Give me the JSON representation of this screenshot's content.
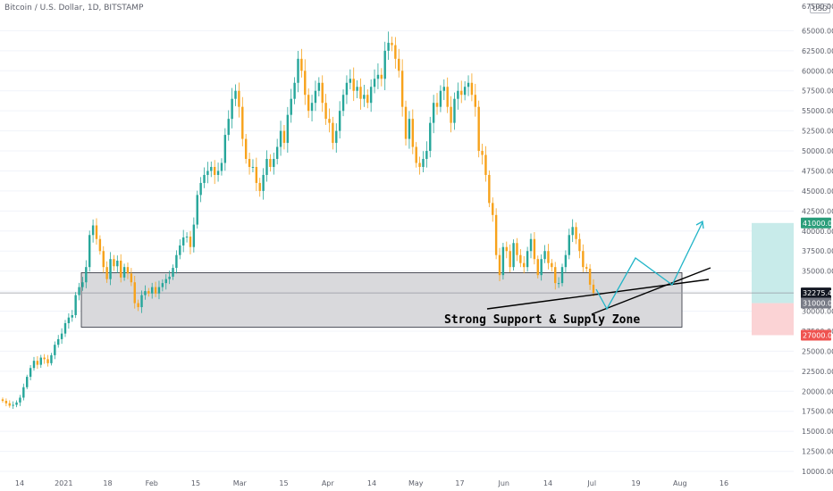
{
  "header": {
    "title": "Bitcoin / U.S. Dollar, 1D, BITSTAMP",
    "currency": "USD"
  },
  "colors": {
    "up": "#26a69a",
    "down": "#f7a21b",
    "zone_fill": "#d9d9dc",
    "projection": "#22b5c8",
    "target_box": "#c8ebea",
    "stop_box": "#fbd3d5",
    "last_price_tag": "#131722",
    "target_tag": "#2a9d7a",
    "stop_tag": "#ef5350"
  },
  "chart_data": {
    "type": "candlestick",
    "symbol": "BTCUSD",
    "ylim": [
      10000,
      67500
    ],
    "y_ticks": [
      10000,
      12500,
      15000,
      17500,
      20000,
      22500,
      25000,
      27500,
      30000,
      32500,
      35000,
      37500,
      40000,
      42500,
      45000,
      47500,
      50000,
      52500,
      55000,
      57500,
      60000,
      62500,
      65000
    ],
    "y_tick_labels": [
      "10000.00",
      "12500.00",
      "15000.00",
      "17500.00",
      "20000.00",
      "22500.00",
      "25000.00",
      "27500.00",
      "30000.00",
      "",
      "35000.00",
      "37500.00",
      "40000.00",
      "42500.00",
      "45000.00",
      "47500.00",
      "50000.00",
      "52500.00",
      "55000.00",
      "57500.00",
      "60000.00",
      "62500.00",
      "65000.00"
    ],
    "y_top_label": "67500.00",
    "x_labels": [
      "14",
      "2021",
      "18",
      "Feb",
      "15",
      "Mar",
      "15",
      "Apr",
      "14",
      "May",
      "17",
      "Jun",
      "14",
      "Jul",
      "19",
      "Aug",
      "16"
    ],
    "last_price": 32275.44,
    "last_price_label": "32275.44",
    "target_price": 41000,
    "target_label": "41000.00",
    "entry_price": 31000,
    "entry_label": "31000.00",
    "stop_price": 27000,
    "stop_label": "27000.00",
    "zone": {
      "high": 34800,
      "low": 28000,
      "label": "Strong Support & Supply Zone"
    },
    "closes": [
      18800,
      18500,
      18200,
      18300,
      18600,
      19200,
      20500,
      21800,
      22900,
      23800,
      23300,
      24200,
      24000,
      23500,
      24500,
      25800,
      26500,
      27200,
      28500,
      29200,
      29500,
      32000,
      33000,
      33600,
      35500,
      39500,
      40700,
      39000,
      37500,
      35500,
      34000,
      36500,
      35600,
      36300,
      34200,
      35500,
      34700,
      33600,
      31000,
      30500,
      32000,
      32500,
      32200,
      33000,
      32200,
      33000,
      33500,
      34000,
      34300,
      35400,
      37000,
      38200,
      39200,
      39300,
      38000,
      40800,
      44500,
      46000,
      47000,
      47500,
      48000,
      47000,
      47500,
      48500,
      52000,
      54000,
      56500,
      57500,
      55500,
      51500,
      49000,
      48000,
      48000,
      46000,
      45000,
      47000,
      49000,
      48000,
      49000,
      50500,
      52500,
      51000,
      54500,
      56500,
      58500,
      61500,
      60000,
      57000,
      55000,
      56000,
      57500,
      58500,
      56000,
      54000,
      53500,
      51000,
      52500,
      55000,
      57000,
      58500,
      59000,
      57500,
      58000,
      56500,
      57000,
      56000,
      58000,
      59000,
      59500,
      59000,
      62500,
      63500,
      63200,
      61500,
      60000,
      55500,
      51500,
      54000,
      50500,
      48500,
      48000,
      49000,
      50000,
      53500,
      56000,
      55500,
      57500,
      58000,
      55500,
      53500,
      56500,
      57500,
      57000,
      58000,
      58500,
      57000,
      55500,
      50000,
      49500,
      47000,
      43500,
      42000,
      37000,
      34500,
      38000,
      37500,
      35500,
      38500,
      37000,
      36000,
      35500,
      37500,
      39000,
      36500,
      34500,
      36500,
      37500,
      36000,
      35500,
      33500,
      33500,
      35500,
      37000,
      39500,
      40500,
      39000,
      37500,
      35500,
      35300,
      33300,
      32275
    ]
  },
  "annotations": {
    "zone_label": "Strong Support & Supply Zone"
  }
}
